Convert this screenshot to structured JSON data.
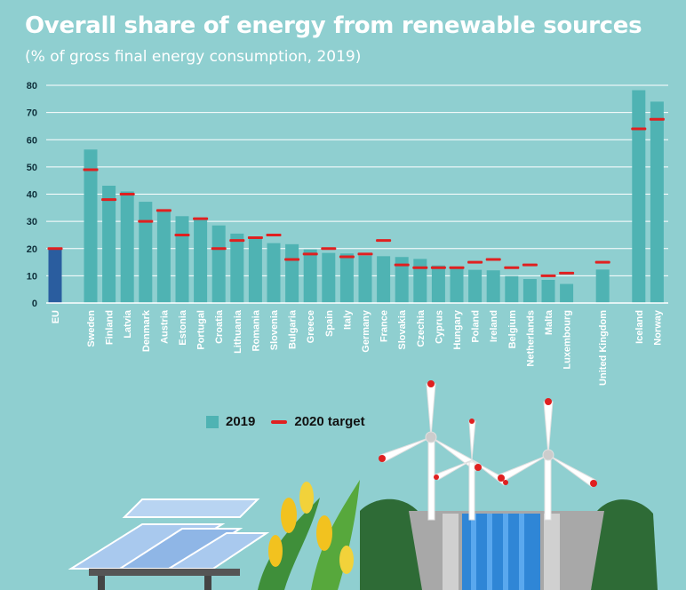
{
  "title": "Overall share of energy from renewable sources",
  "subtitle": "(% of gross final energy consumption, 2019)",
  "legend": {
    "series_2019": "2019",
    "target_2020": "2020 target"
  },
  "colors": {
    "bar": "#4fb3b3",
    "bar_eu": "#2a5d9f",
    "target": "#e02020",
    "gridline": "#ffffff",
    "background": "#8fcfd0"
  },
  "chart_data": {
    "type": "bar",
    "title": "Overall share of energy from renewable sources",
    "subtitle": "(% of gross final energy consumption, 2019)",
    "xlabel": "",
    "ylabel": "",
    "ylim": [
      0,
      80
    ],
    "yticks": [
      0,
      10,
      20,
      30,
      40,
      50,
      60,
      70,
      80
    ],
    "grid": true,
    "legend_position": "bottom-center",
    "categories": [
      "EU",
      "Sweden",
      "Finland",
      "Latvia",
      "Denmark",
      "Austria",
      "Estonia",
      "Portugal",
      "Croatia",
      "Lithuania",
      "Romania",
      "Slovenia",
      "Bulgaria",
      "Greece",
      "Spain",
      "Italy",
      "Germany",
      "France",
      "Slovakia",
      "Czechia",
      "Cyprus",
      "Hungary",
      "Poland",
      "Ireland",
      "Belgium",
      "Netherlands",
      "Malta",
      "Luxembourg",
      "United Kingdom",
      "Iceland",
      "Norway"
    ],
    "series": [
      {
        "name": "2019",
        "values": [
          19.7,
          56.4,
          43.1,
          41.0,
          37.2,
          33.6,
          31.9,
          30.6,
          28.5,
          25.5,
          24.3,
          22.0,
          21.6,
          19.7,
          18.4,
          18.2,
          17.4,
          17.2,
          16.9,
          16.2,
          13.8,
          12.6,
          12.2,
          12.0,
          9.9,
          8.8,
          8.5,
          7.0,
          12.3,
          78.2,
          74.0
        ]
      },
      {
        "name": "2020 target",
        "values": [
          20,
          49,
          38,
          40,
          30,
          34,
          25,
          31,
          20,
          23,
          24,
          25,
          16,
          18,
          20,
          17,
          18,
          23,
          14,
          13,
          13,
          13,
          15,
          16,
          13,
          14,
          10,
          11,
          15,
          64,
          67.5
        ]
      }
    ]
  }
}
